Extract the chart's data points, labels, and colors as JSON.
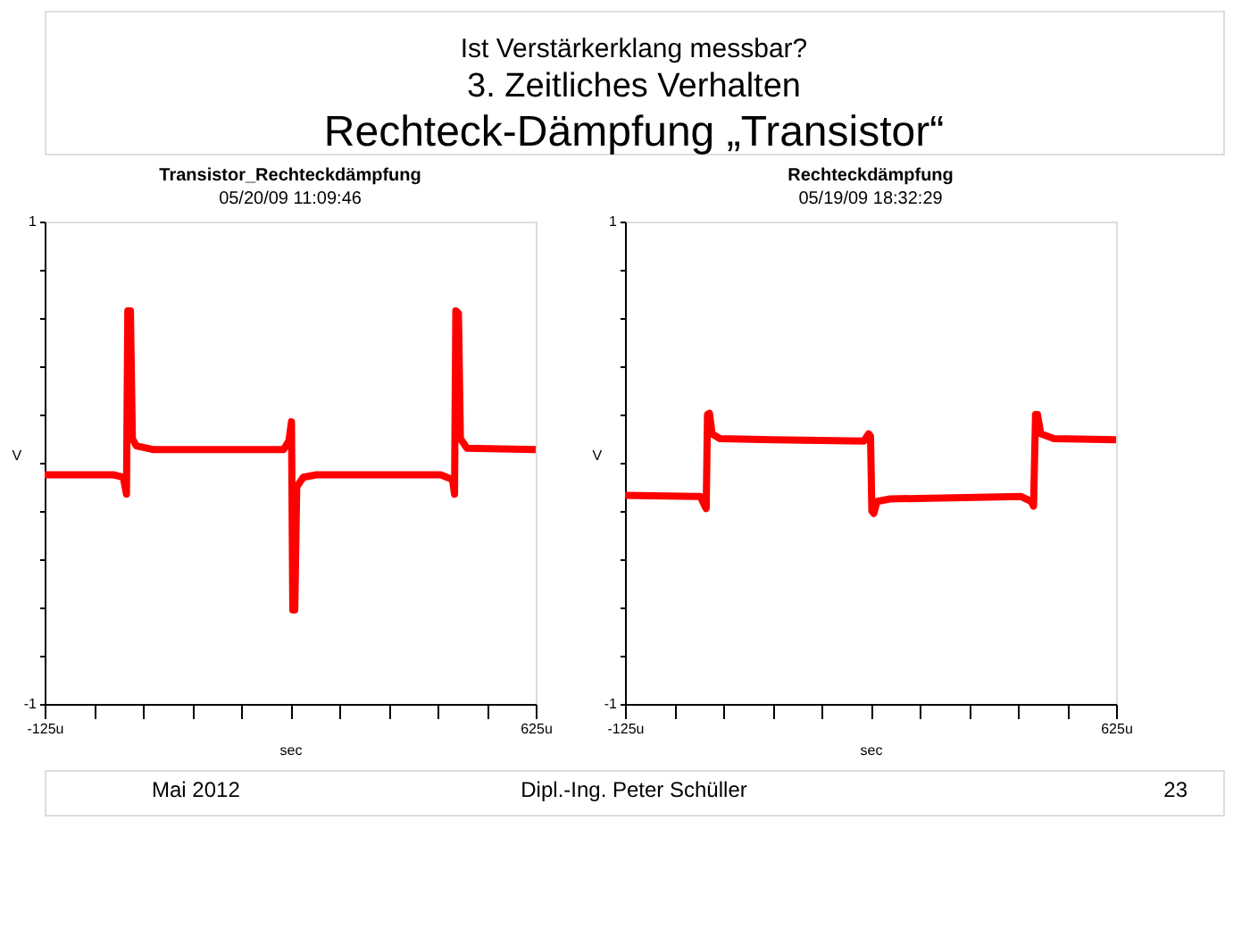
{
  "chart_data": [
    {
      "type": "line",
      "title": "Transistor_Rechteckdämpfung",
      "subtitle": "05/20/09 11:09:46",
      "xlabel": "sec",
      "ylabel": "V",
      "annotations": [
        "Ist Verstärkerklang messbar?",
        "3. Zeitliches Verhalten",
        "Rechteck-Dämpfung „Transistor“",
        "Mai 2012",
        "Dipl.-Ing. Peter Schüller",
        "23"
      ],
      "xlim": [
        -125,
        625
      ],
      "xticks": [
        {
          "value": -125,
          "label": "-125u"
        },
        {
          "value": -50,
          "label": null
        },
        {
          "value": 25,
          "label": null
        },
        {
          "value": 100,
          "label": null
        },
        {
          "value": 175,
          "label": null
        },
        {
          "value": 250,
          "label": null
        },
        {
          "value": 325,
          "label": null
        },
        {
          "value": 400,
          "label": null
        },
        {
          "value": 475,
          "label": null
        },
        {
          "value": 550,
          "label": null
        },
        {
          "value": 625,
          "label": "625u"
        }
      ],
      "ylim": [
        -1,
        1
      ],
      "yticks": [
        -1,
        {
          "value": -0.8,
          "label": null
        },
        {
          "value": -0.6,
          "label": null
        },
        {
          "value": -0.4,
          "label": null
        },
        {
          "value": -0.2,
          "label": null
        },
        {
          "value": 0,
          "label": null
        },
        {
          "value": 0.2,
          "label": null
        },
        {
          "value": 0.4,
          "label": null
        },
        {
          "value": 0.6,
          "label": null
        },
        {
          "value": 0.8,
          "label": null
        },
        1
      ],
      "grid": false,
      "marker": "none",
      "line_style": "solid",
      "series": [
        {
          "color": "#ff0000",
          "x": [
            -125,
            -20,
            -5,
            0,
            2,
            6,
            9,
            15,
            40,
            240,
            248,
            252,
            254,
            257,
            260,
            270,
            290,
            480,
            498,
            501,
            503,
            507,
            510,
            520,
            625
          ],
          "values": [
            -0.05,
            -0.05,
            -0.06,
            -0.13,
            0.63,
            0.63,
            0.1,
            0.07,
            0.055,
            0.055,
            0.09,
            0.17,
            -0.61,
            -0.61,
            -0.1,
            -0.06,
            -0.05,
            -0.05,
            -0.07,
            -0.13,
            0.63,
            0.62,
            0.1,
            0.06,
            0.055
          ]
        }
      ]
    },
    {
      "type": "line",
      "title": "Rechteckdämpfung",
      "subtitle": "05/19/09 18:32:29",
      "xlabel": "sec",
      "ylabel": "V",
      "xlim": [
        -125,
        625
      ],
      "xticks": [
        {
          "value": -125,
          "label": "-125u"
        },
        {
          "value": -50,
          "label": null
        },
        {
          "value": 25,
          "label": null
        },
        {
          "value": 100,
          "label": null
        },
        {
          "value": 175,
          "label": null
        },
        {
          "value": 250,
          "label": null
        },
        {
          "value": 325,
          "label": null
        },
        {
          "value": 400,
          "label": null
        },
        {
          "value": 475,
          "label": null
        },
        {
          "value": 550,
          "label": null
        },
        {
          "value": 625,
          "label": "625u"
        }
      ],
      "ylim": [
        -1,
        1
      ],
      "yticks": [
        -1,
        {
          "value": -0.8,
          "label": null
        },
        {
          "value": -0.6,
          "label": null
        },
        {
          "value": -0.4,
          "label": null
        },
        {
          "value": -0.2,
          "label": null
        },
        {
          "value": 0,
          "label": null
        },
        {
          "value": 0.2,
          "label": null
        },
        {
          "value": 0.4,
          "label": null
        },
        {
          "value": 0.6,
          "label": null
        },
        {
          "value": 0.8,
          "label": null
        },
        1
      ],
      "grid": false,
      "marker": "none",
      "line_style": "solid",
      "series": [
        {
          "color": "#ff0000",
          "x": [
            -125,
            -10,
            -3,
            -1,
            1,
            4,
            8,
            20,
            100,
            240,
            247,
            250,
            252,
            255,
            260,
            280,
            480,
            495,
            499,
            502,
            505,
            510,
            530,
            625
          ],
          "values": [
            -0.135,
            -0.14,
            -0.18,
            -0.19,
            0.2,
            0.205,
            0.12,
            0.1,
            0.095,
            0.09,
            0.12,
            0.11,
            -0.2,
            -0.21,
            -0.16,
            -0.15,
            -0.14,
            -0.16,
            -0.18,
            0.2,
            0.2,
            0.12,
            0.1,
            0.095
          ]
        }
      ]
    }
  ]
}
